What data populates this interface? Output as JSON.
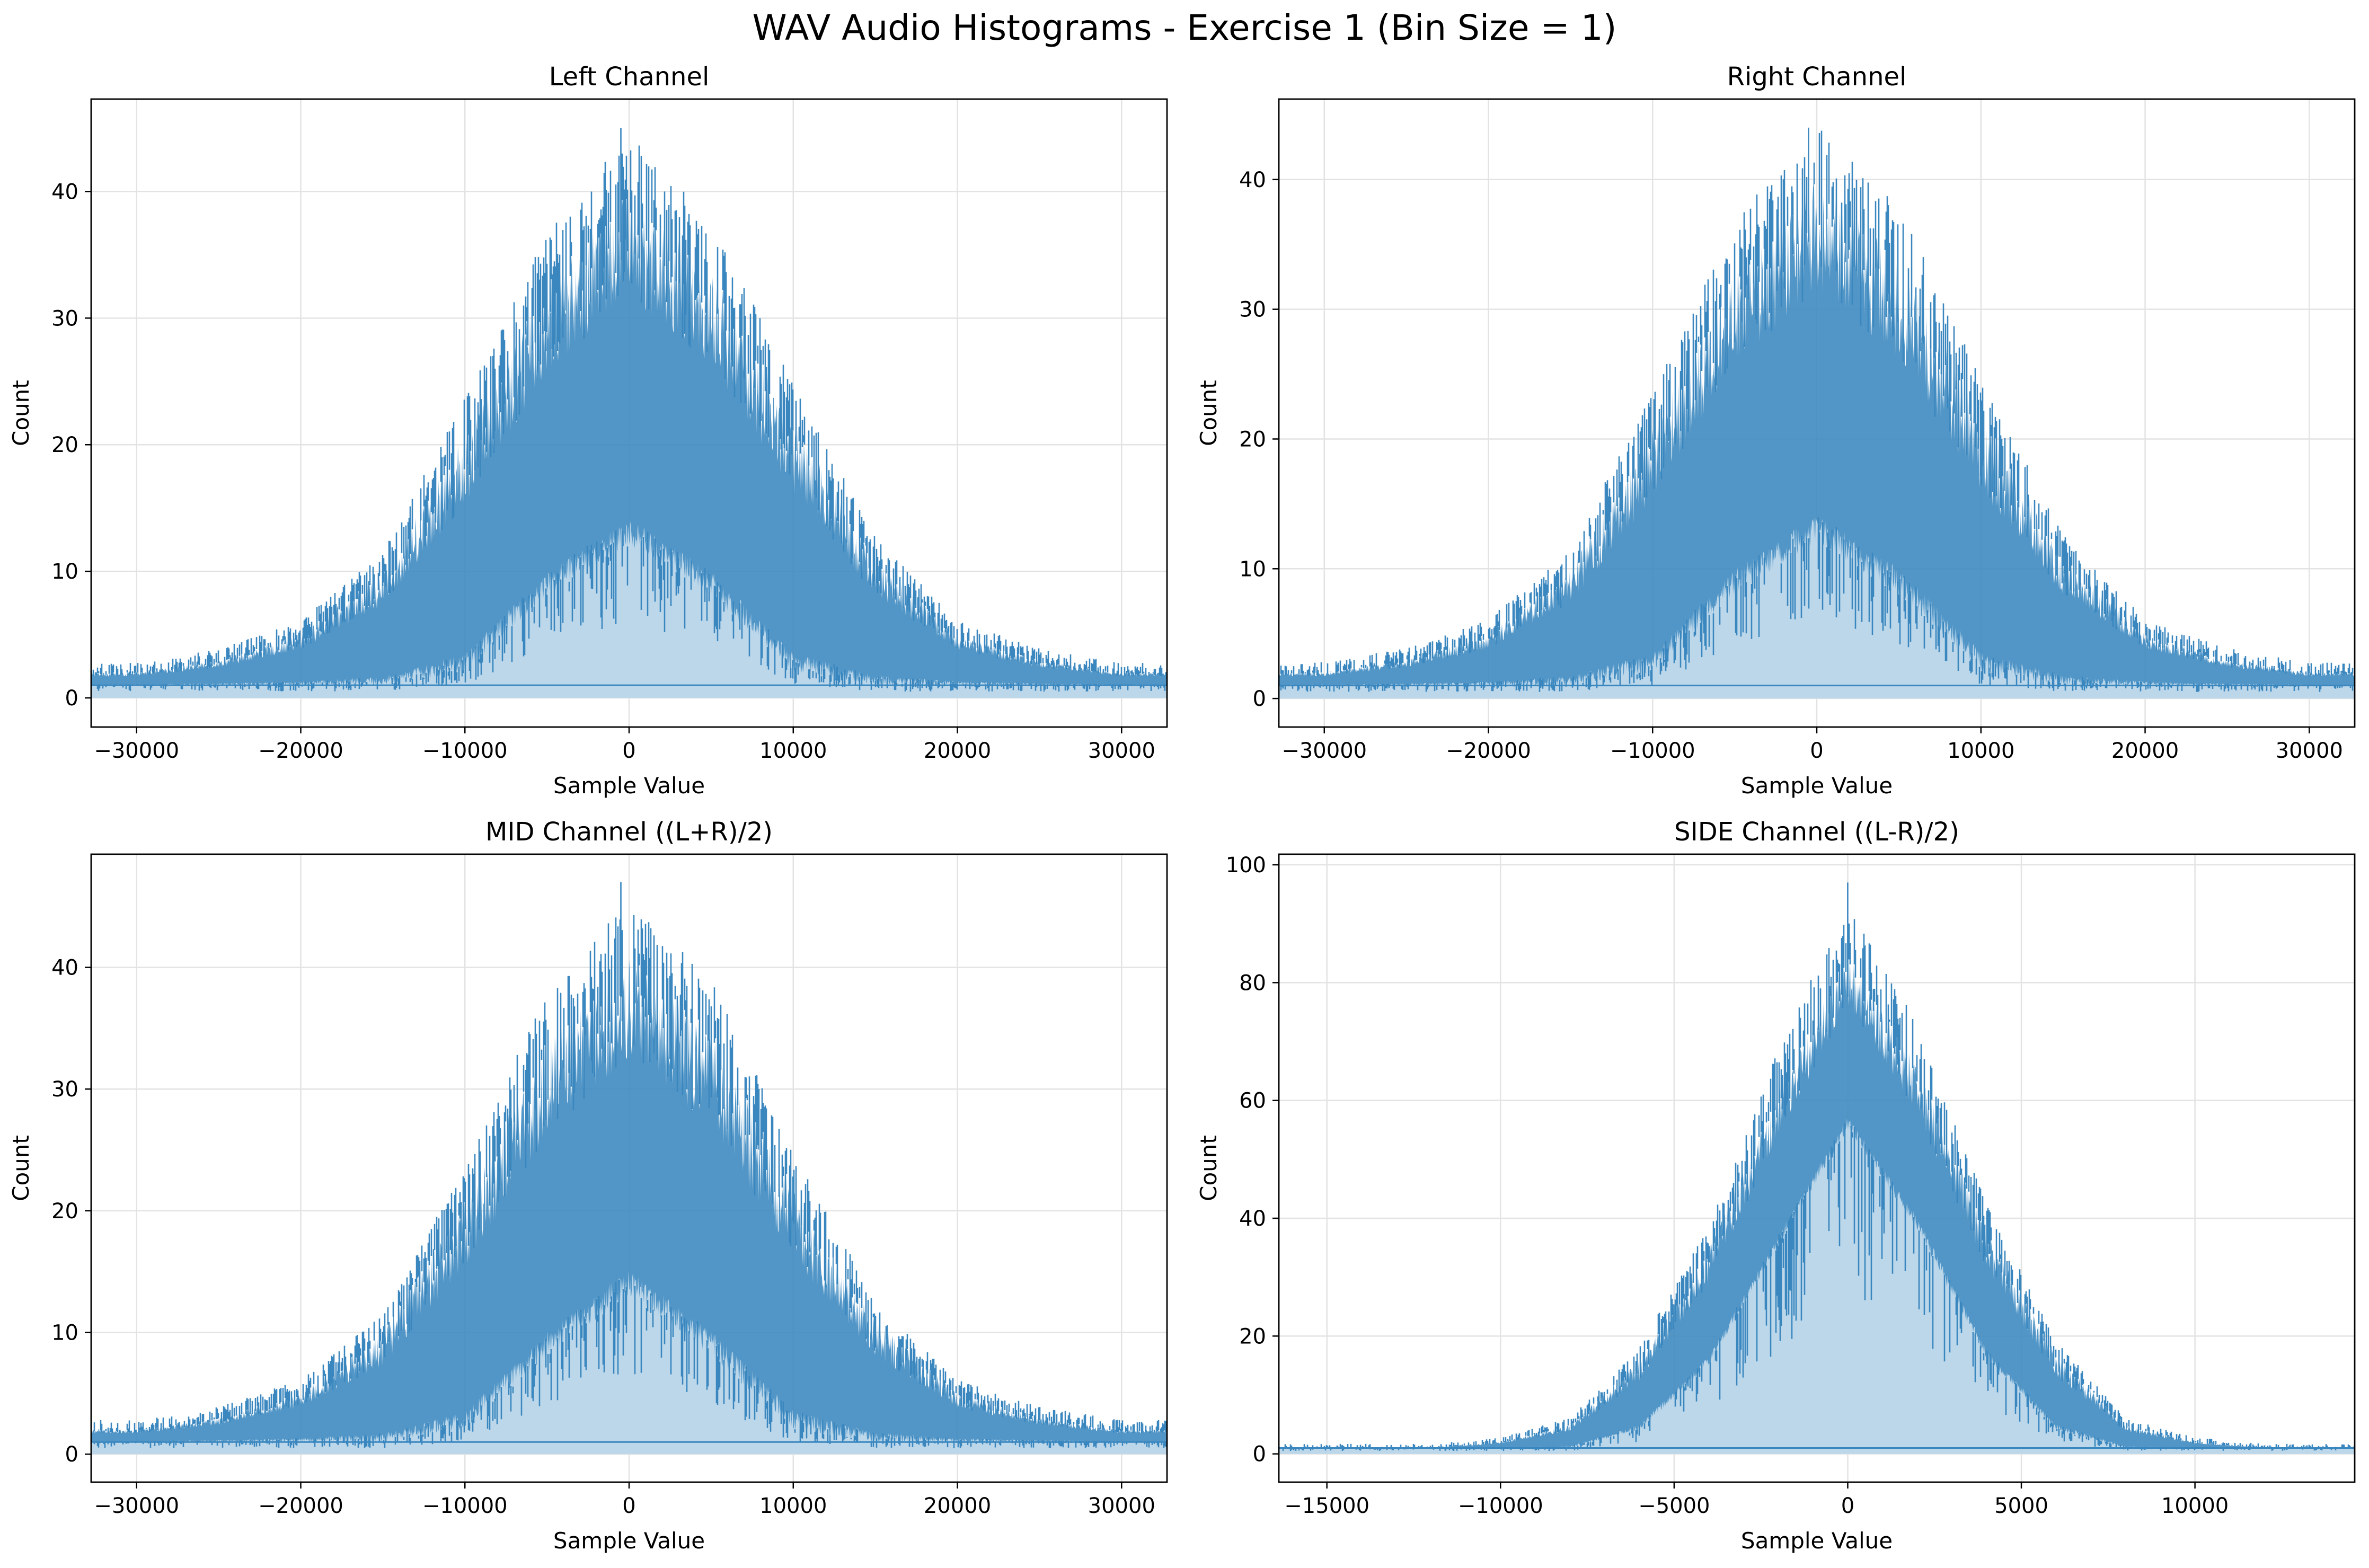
{
  "figure": {
    "suptitle": "WAV Audio Histograms - Exercise 1 (Bin Size = 1)"
  },
  "style": {
    "line_color": "#3a87bf",
    "fill_color": "#bcd7ea",
    "grid_color": "#e3e3e3",
    "axis_color": "#000000"
  },
  "chart_data": [
    {
      "type": "area",
      "title": "Left Channel",
      "xlabel": "Sample Value",
      "ylabel": "Count",
      "xlim": [
        -32768,
        32767
      ],
      "ylim": [
        -2.3,
        47.3
      ],
      "xticks": [
        -30000,
        -20000,
        -10000,
        0,
        10000,
        20000,
        30000
      ],
      "yticks": [
        0,
        10,
        20,
        30,
        40
      ],
      "grid": true,
      "envelope": {
        "x": [
          -32768,
          -30000,
          -25000,
          -20000,
          -15000,
          -10000,
          -5000,
          0,
          5000,
          10000,
          15000,
          20000,
          25000,
          30000,
          32767
        ],
        "max_count": [
          2,
          2,
          3,
          5,
          10,
          21,
          33,
          40,
          34,
          22,
          11,
          5,
          3,
          2,
          2
        ],
        "low_count": [
          1,
          1,
          1,
          1,
          1,
          2,
          8,
          12,
          8,
          2,
          1,
          1,
          1,
          1,
          1
        ],
        "peak": 45
      }
    },
    {
      "type": "area",
      "title": "Right Channel",
      "xlabel": "Sample Value",
      "ylabel": "Count",
      "xlim": [
        -32768,
        32767
      ],
      "ylim": [
        -2.2,
        46.2
      ],
      "xticks": [
        -30000,
        -20000,
        -10000,
        0,
        10000,
        20000,
        30000
      ],
      "yticks": [
        0,
        10,
        20,
        30,
        40
      ],
      "grid": true,
      "envelope": {
        "x": [
          -32768,
          -30000,
          -25000,
          -20000,
          -15000,
          -10000,
          -5000,
          0,
          5000,
          10000,
          15000,
          20000,
          25000,
          30000,
          32767
        ],
        "max_count": [
          2,
          2,
          3,
          5,
          10,
          21,
          33,
          40,
          34,
          22,
          11,
          5,
          3,
          2,
          2
        ],
        "low_count": [
          1,
          1,
          1,
          1,
          1,
          2,
          8,
          12,
          8,
          2,
          1,
          1,
          1,
          1,
          1
        ],
        "peak": 44
      }
    },
    {
      "type": "area",
      "title": "MID Channel ((L+R)/2)",
      "xlabel": "Sample Value",
      "ylabel": "Count",
      "xlim": [
        -32768,
        32767
      ],
      "ylim": [
        -2.3,
        49.3
      ],
      "xticks": [
        -30000,
        -20000,
        -10000,
        0,
        10000,
        20000,
        30000
      ],
      "yticks": [
        0,
        10,
        20,
        30,
        40
      ],
      "grid": true,
      "envelope": {
        "x": [
          -32768,
          -30000,
          -25000,
          -20000,
          -15000,
          -10000,
          -5000,
          0,
          5000,
          10000,
          15000,
          20000,
          25000,
          30000,
          32767
        ],
        "max_count": [
          2,
          2,
          3,
          5,
          10,
          21,
          34,
          41,
          35,
          22,
          11,
          5,
          3,
          2,
          2
        ],
        "low_count": [
          1,
          1,
          1,
          1,
          1,
          2,
          8,
          13,
          8,
          2,
          1,
          1,
          1,
          1,
          1
        ],
        "peak": 47
      }
    },
    {
      "type": "area",
      "title": "SIDE Channel ((L-R)/2)",
      "xlabel": "Sample Value",
      "ylabel": "Count",
      "xlim": [
        -16384,
        14600
      ],
      "ylim": [
        -4.8,
        101.8
      ],
      "xticks": [
        -15000,
        -10000,
        -5000,
        0,
        5000,
        10000
      ],
      "yticks": [
        0,
        20,
        40,
        60,
        80,
        100
      ],
      "grid": true,
      "envelope": {
        "x": [
          -16384,
          -12000,
          -10000,
          -8000,
          -6000,
          -4000,
          -2000,
          0,
          2000,
          4000,
          6000,
          8000,
          10000,
          12000,
          14600
        ],
        "max_count": [
          1,
          1,
          2,
          5,
          16,
          35,
          62,
          85,
          66,
          38,
          17,
          5,
          2,
          1,
          1
        ],
        "low_count": [
          1,
          1,
          1,
          1,
          4,
          15,
          35,
          55,
          38,
          16,
          4,
          1,
          1,
          1,
          1
        ],
        "peak": 97
      }
    }
  ]
}
